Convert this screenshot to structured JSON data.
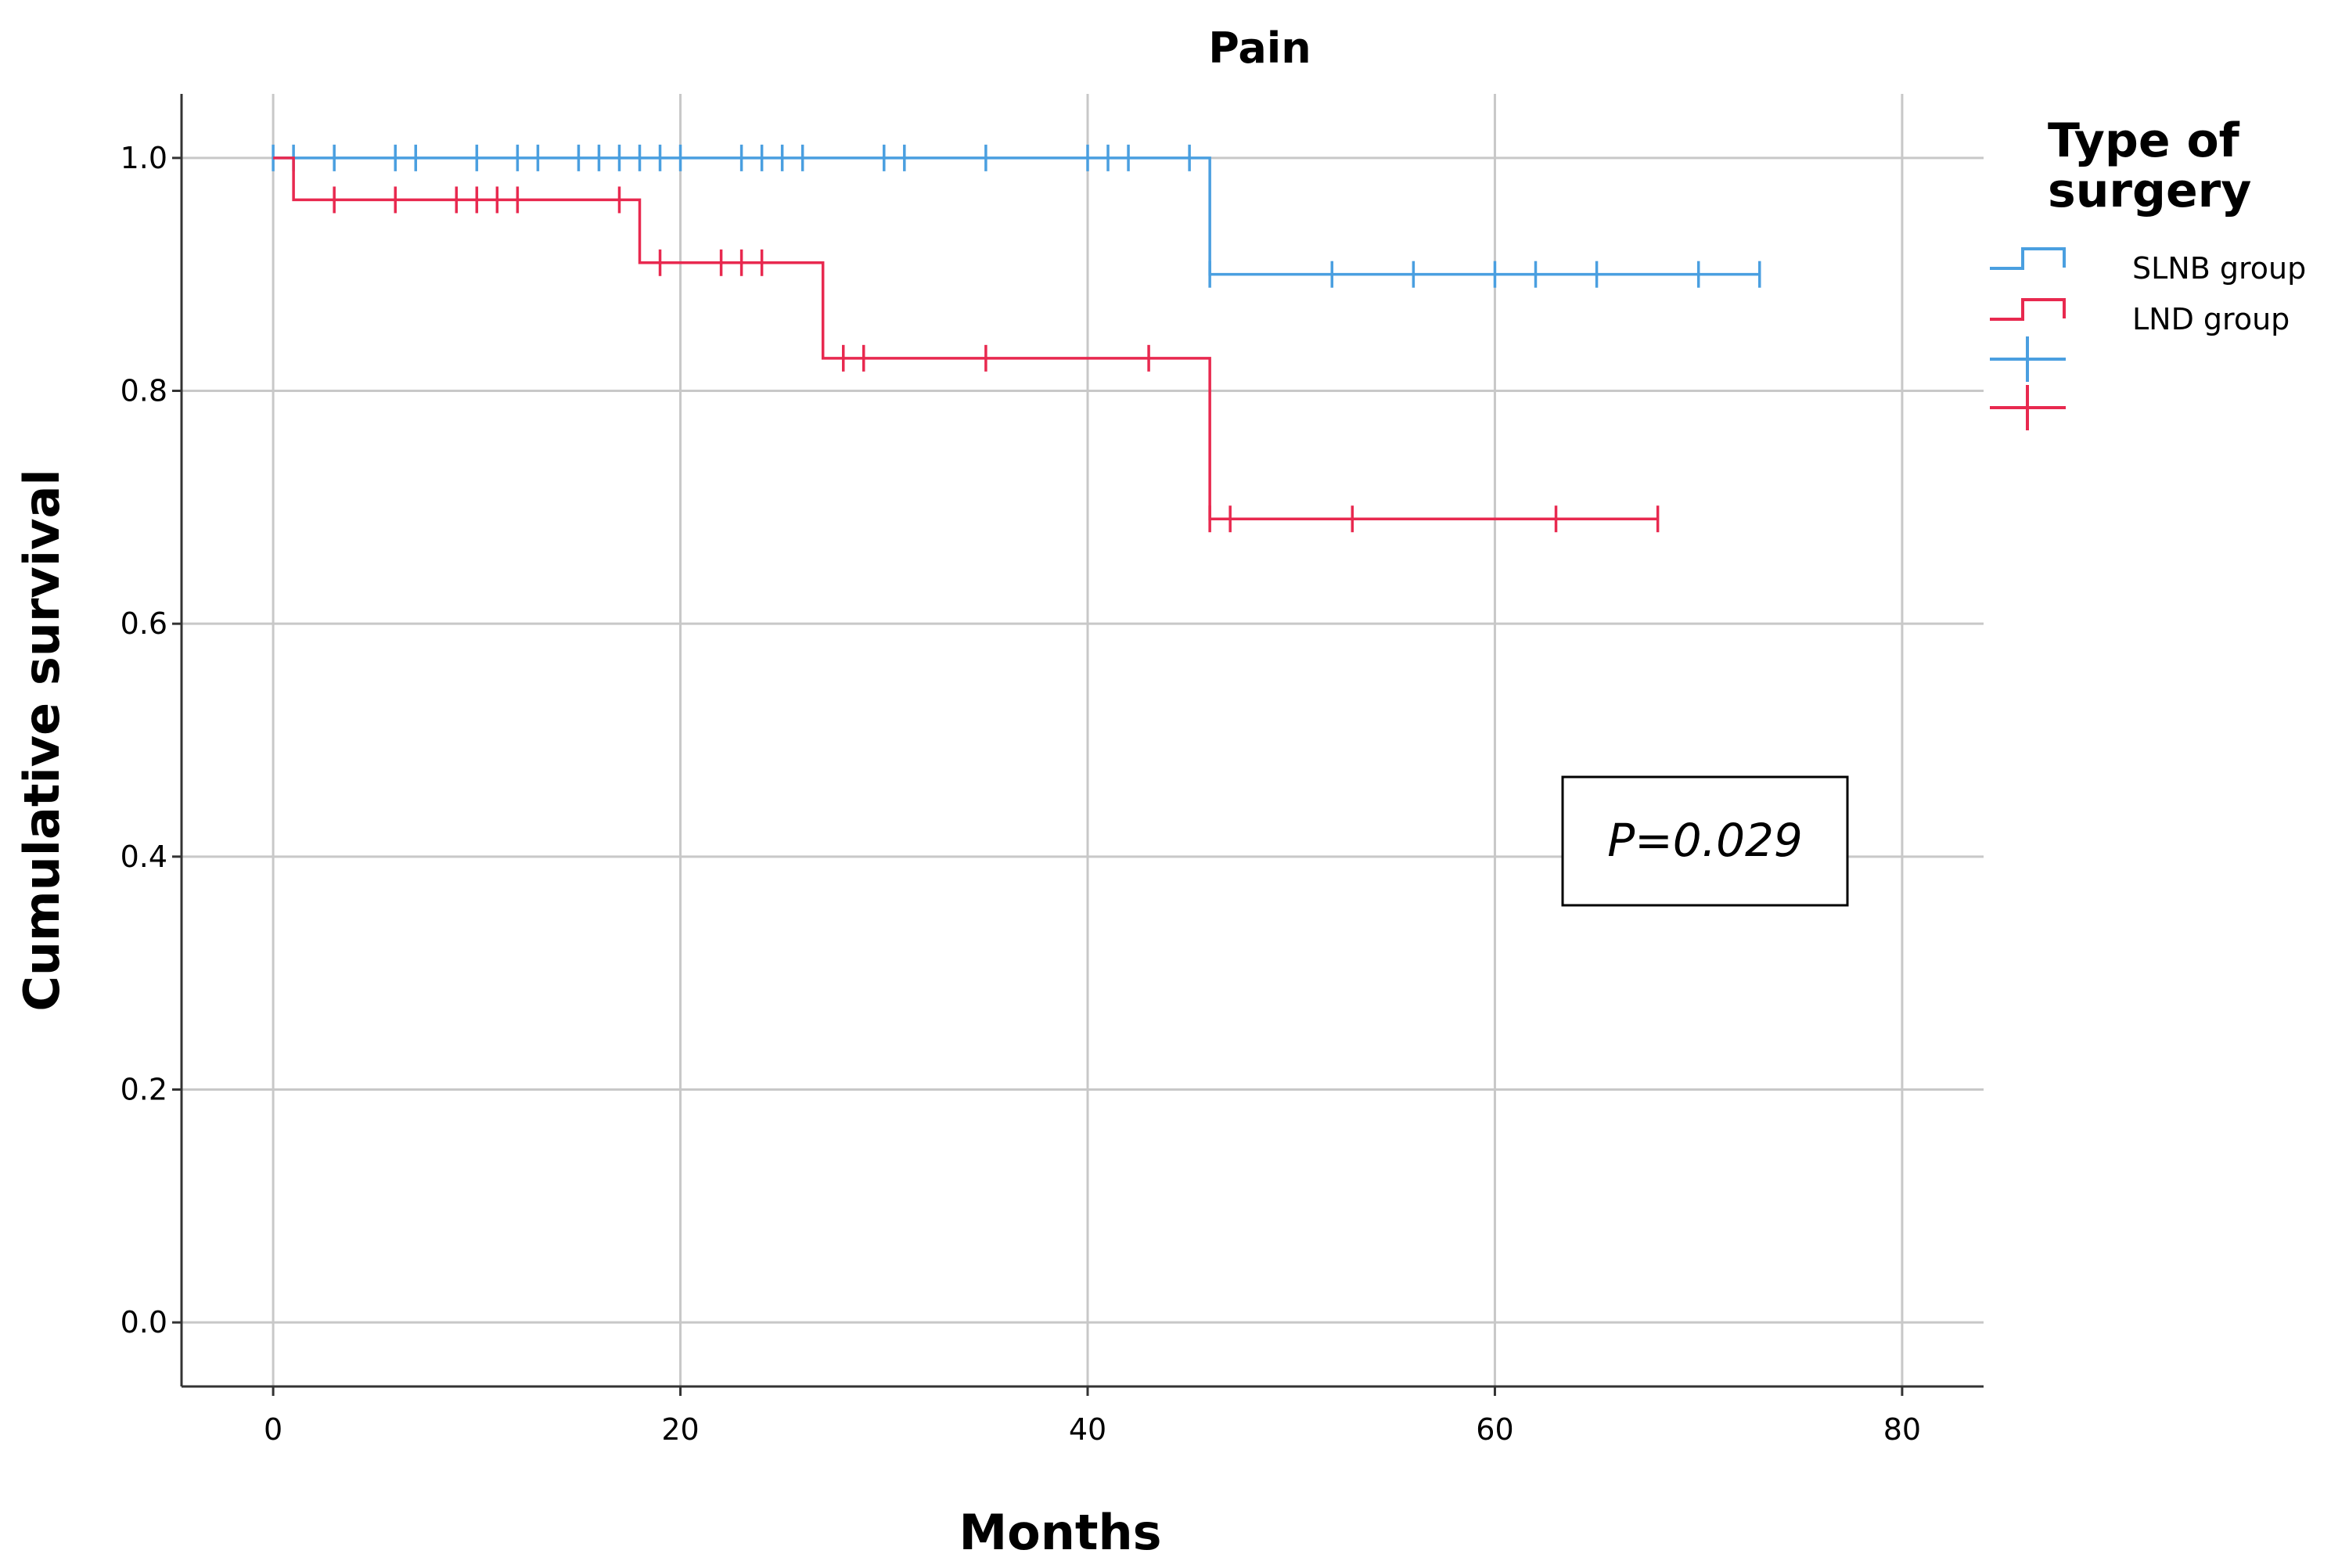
{
  "chart_data": {
    "type": "line",
    "subtype": "kaplan-meier",
    "title": "Pain",
    "xlabel": "Months",
    "ylabel": "Cumulative survival",
    "xlim": [
      -4.5,
      84
    ],
    "ylim": [
      -0.055,
      1.055
    ],
    "xticks": [
      0,
      20,
      40,
      60,
      80
    ],
    "xtick_labels": [
      "0",
      "20",
      "40",
      "60",
      "80"
    ],
    "yticks": [
      0.0,
      0.2,
      0.4,
      0.6,
      0.8,
      1.0
    ],
    "ytick_labels": [
      "0.0",
      "0.2",
      "0.4",
      "0.6",
      "0.8",
      "1.0"
    ],
    "grid": true,
    "legend": {
      "title_lines": [
        "Type of",
        "surgery"
      ],
      "placement": "right"
    },
    "annotation": "P=0.029",
    "series": [
      {
        "name": "SLNB group",
        "color": "#4a9fe0",
        "steps": [
          [
            0,
            1.0
          ],
          [
            46,
            0.9
          ],
          [
            73,
            0.9
          ]
        ],
        "censored": [
          [
            0,
            1.0
          ],
          [
            1,
            1.0
          ],
          [
            3,
            1.0
          ],
          [
            6,
            1.0
          ],
          [
            7,
            1.0
          ],
          [
            10,
            1.0
          ],
          [
            12,
            1.0
          ],
          [
            13,
            1.0
          ],
          [
            15,
            1.0
          ],
          [
            16,
            1.0
          ],
          [
            17,
            1.0
          ],
          [
            18,
            1.0
          ],
          [
            19,
            1.0
          ],
          [
            20,
            1.0
          ],
          [
            23,
            1.0
          ],
          [
            24,
            1.0
          ],
          [
            25,
            1.0
          ],
          [
            26,
            1.0
          ],
          [
            30,
            1.0
          ],
          [
            31,
            1.0
          ],
          [
            35,
            1.0
          ],
          [
            40,
            1.0
          ],
          [
            41,
            1.0
          ],
          [
            42,
            1.0
          ],
          [
            45,
            1.0
          ],
          [
            46,
            0.9
          ],
          [
            52,
            0.9
          ],
          [
            56,
            0.9
          ],
          [
            60,
            0.9
          ],
          [
            62,
            0.9
          ],
          [
            65,
            0.9
          ],
          [
            70,
            0.9
          ],
          [
            73,
            0.9
          ]
        ]
      },
      {
        "name": "LND group",
        "color": "#e8294f",
        "steps": [
          [
            0,
            1.0
          ],
          [
            1,
            0.964
          ],
          [
            18,
            0.91
          ],
          [
            27,
            0.828
          ],
          [
            46,
            0.69
          ],
          [
            68,
            0.69
          ]
        ],
        "censored": [
          [
            3,
            0.964
          ],
          [
            6,
            0.964
          ],
          [
            9,
            0.964
          ],
          [
            10,
            0.964
          ],
          [
            11,
            0.964
          ],
          [
            12,
            0.964
          ],
          [
            17,
            0.964
          ],
          [
            19,
            0.91
          ],
          [
            22,
            0.91
          ],
          [
            23,
            0.91
          ],
          [
            24,
            0.91
          ],
          [
            28,
            0.828
          ],
          [
            29,
            0.828
          ],
          [
            35,
            0.828
          ],
          [
            43,
            0.828
          ],
          [
            46,
            0.69
          ],
          [
            47,
            0.69
          ],
          [
            53,
            0.69
          ],
          [
            63,
            0.69
          ],
          [
            68,
            0.69
          ]
        ]
      }
    ]
  }
}
